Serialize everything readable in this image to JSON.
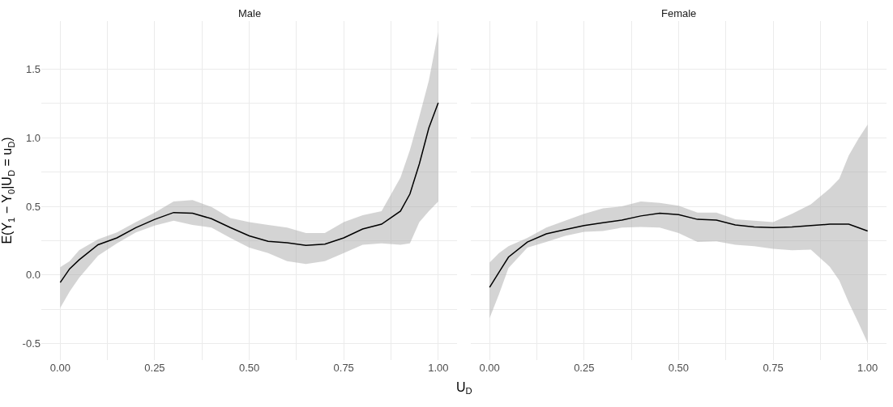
{
  "chart_data": [
    {
      "type": "line",
      "title": "Male",
      "xlabel": "U$_{D}$",
      "ylabel": "E(Y$_{1}$ − Y$_{0}$|U$_{D}$ = u$_{D}$)",
      "x": [
        0,
        0.025,
        0.05,
        0.1,
        0.15,
        0.2,
        0.25,
        0.3,
        0.35,
        0.4,
        0.45,
        0.5,
        0.55,
        0.6,
        0.65,
        0.7,
        0.75,
        0.8,
        0.85,
        0.9,
        0.925,
        0.95,
        0.975,
        1.0
      ],
      "series": [
        {
          "color": "#000000",
          "values": [
            -0.055,
            0.045,
            0.11,
            0.22,
            0.27,
            0.345,
            0.405,
            0.455,
            0.45,
            0.41,
            0.345,
            0.285,
            0.245,
            0.235,
            0.215,
            0.225,
            0.27,
            0.335,
            0.37,
            0.465,
            0.59,
            0.81,
            1.07,
            1.255
          ],
          "lower": [
            -0.24,
            -0.12,
            -0.02,
            0.14,
            0.23,
            0.31,
            0.36,
            0.395,
            0.365,
            0.345,
            0.27,
            0.2,
            0.16,
            0.1,
            0.08,
            0.1,
            0.16,
            0.22,
            0.23,
            0.22,
            0.23,
            0.385,
            0.465,
            0.535
          ],
          "upper": [
            0.057,
            0.1,
            0.18,
            0.26,
            0.31,
            0.385,
            0.455,
            0.535,
            0.545,
            0.495,
            0.415,
            0.385,
            0.365,
            0.345,
            0.305,
            0.305,
            0.385,
            0.435,
            0.465,
            0.71,
            0.91,
            1.155,
            1.415,
            1.77
          ]
        }
      ],
      "xlim": [
        -0.05,
        1.05
      ],
      "ylim": [
        -0.62,
        1.85
      ],
      "xticks": [
        {
          "value": 0,
          "label": "0.00"
        },
        {
          "value": 0.25,
          "label": "0.25"
        },
        {
          "value": 0.5,
          "label": "0.50"
        },
        {
          "value": 0.75,
          "label": "0.75"
        },
        {
          "value": 1,
          "label": "1.00"
        }
      ],
      "yticks": [
        {
          "value": -0.5,
          "label": "-0.5"
        },
        {
          "value": 0,
          "label": "0.0"
        },
        {
          "value": 0.5,
          "label": "0.5"
        },
        {
          "value": 1,
          "label": "1.0"
        },
        {
          "value": 1.5,
          "label": "1.5"
        }
      ],
      "grid": true,
      "line_style": "solid",
      "marker": "none"
    },
    {
      "type": "line",
      "title": "Female",
      "x": [
        0,
        0.025,
        0.05,
        0.1,
        0.15,
        0.2,
        0.25,
        0.3,
        0.35,
        0.4,
        0.45,
        0.5,
        0.55,
        0.6,
        0.65,
        0.7,
        0.75,
        0.8,
        0.85,
        0.9,
        0.925,
        0.95,
        0.975,
        1.0
      ],
      "series": [
        {
          "color": "#000000",
          "values": [
            -0.09,
            0.02,
            0.13,
            0.24,
            0.3,
            0.33,
            0.36,
            0.38,
            0.4,
            0.43,
            0.45,
            0.44,
            0.405,
            0.4,
            0.365,
            0.35,
            0.345,
            0.35,
            0.36,
            0.37,
            0.37,
            0.37,
            0.345,
            0.32
          ],
          "lower": [
            -0.315,
            -0.14,
            0.05,
            0.2,
            0.24,
            0.285,
            0.315,
            0.32,
            0.345,
            0.35,
            0.345,
            0.305,
            0.24,
            0.245,
            0.22,
            0.21,
            0.19,
            0.18,
            0.185,
            0.06,
            -0.04,
            -0.2,
            -0.345,
            -0.495
          ],
          "upper": [
            0.09,
            0.16,
            0.21,
            0.27,
            0.345,
            0.395,
            0.445,
            0.485,
            0.5,
            0.535,
            0.525,
            0.505,
            0.455,
            0.455,
            0.405,
            0.395,
            0.385,
            0.445,
            0.515,
            0.63,
            0.7,
            0.87,
            0.99,
            1.095
          ]
        }
      ],
      "xlim": [
        -0.05,
        1.05
      ],
      "ylim": [
        -0.62,
        1.85
      ],
      "xticks": [
        {
          "value": 0,
          "label": "0.00"
        },
        {
          "value": 0.25,
          "label": "0.25"
        },
        {
          "value": 0.5,
          "label": "0.50"
        },
        {
          "value": 0.75,
          "label": "0.75"
        },
        {
          "value": 1,
          "label": "1.00"
        }
      ],
      "yticks": [
        {
          "value": -0.5,
          "label": null
        },
        {
          "value": 0,
          "label": null
        },
        {
          "value": 0.5,
          "label": null
        },
        {
          "value": 1,
          "label": null
        },
        {
          "value": 1.5,
          "label": null
        }
      ],
      "tick_labels": "x",
      "grid": true,
      "line_style": "solid",
      "marker": "none"
    }
  ]
}
